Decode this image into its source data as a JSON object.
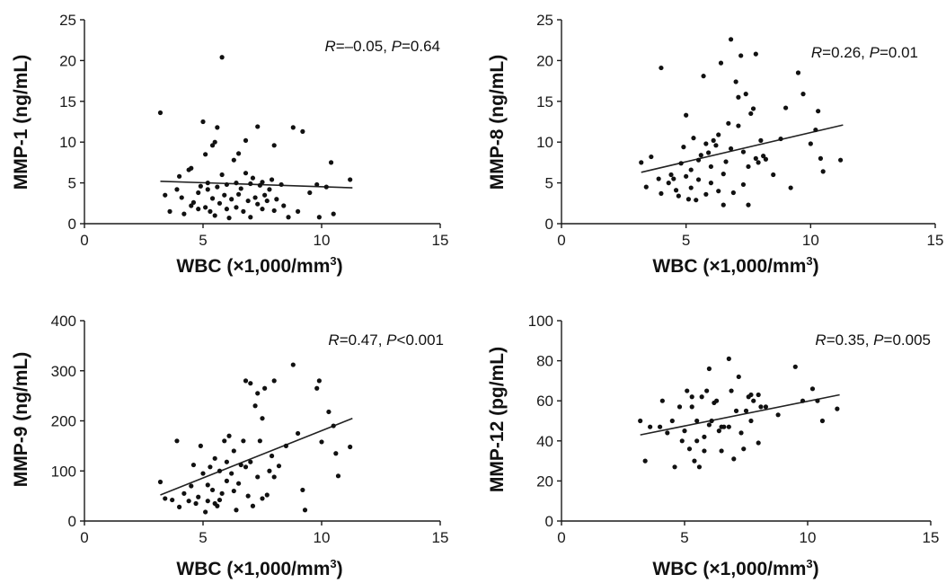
{
  "chart_data": [
    {
      "type": "scatter",
      "xlabel": "WBC (×1,000/mm³)",
      "ylabel": "MMP-1 (ng/mL)",
      "xlim": [
        0,
        15
      ],
      "ylim": [
        0,
        25
      ],
      "xticks": [
        "0",
        "5",
        "10",
        "15"
      ],
      "yticks": [
        "0",
        "5",
        "10",
        "15",
        "20",
        "25"
      ],
      "annotation": {
        "r_label": "R",
        "r_value": "=–0.05, ",
        "p_label": "P",
        "p_value": "=0.64"
      },
      "trendline": {
        "x": [
          3.2,
          11.3
        ],
        "y": [
          5.2,
          4.4
        ]
      },
      "points": [
        [
          3.2,
          13.6
        ],
        [
          3.4,
          3.5
        ],
        [
          3.6,
          1.5
        ],
        [
          3.9,
          4.2
        ],
        [
          4.0,
          5.8
        ],
        [
          4.1,
          3.2
        ],
        [
          4.2,
          1.2
        ],
        [
          4.4,
          6.6
        ],
        [
          4.5,
          2.2
        ],
        [
          4.5,
          6.8
        ],
        [
          4.6,
          2.6
        ],
        [
          4.8,
          3.8
        ],
        [
          4.8,
          1.8
        ],
        [
          4.9,
          4.6
        ],
        [
          5.0,
          12.5
        ],
        [
          5.1,
          8.5
        ],
        [
          5.1,
          2.0
        ],
        [
          5.2,
          5.0
        ],
        [
          5.2,
          4.2
        ],
        [
          5.3,
          1.5
        ],
        [
          5.4,
          9.6
        ],
        [
          5.4,
          3.1
        ],
        [
          5.5,
          10.0
        ],
        [
          5.5,
          1.0
        ],
        [
          5.6,
          11.8
        ],
        [
          5.6,
          4.5
        ],
        [
          5.7,
          2.5
        ],
        [
          5.8,
          20.4
        ],
        [
          5.8,
          6.0
        ],
        [
          5.9,
          3.5
        ],
        [
          6.0,
          1.8
        ],
        [
          6.0,
          4.8
        ],
        [
          6.1,
          0.7
        ],
        [
          6.2,
          3.0
        ],
        [
          6.3,
          7.8
        ],
        [
          6.4,
          5.0
        ],
        [
          6.4,
          2.0
        ],
        [
          6.5,
          8.6
        ],
        [
          6.5,
          3.6
        ],
        [
          6.6,
          4.3
        ],
        [
          6.7,
          1.5
        ],
        [
          6.8,
          10.2
        ],
        [
          6.8,
          6.2
        ],
        [
          6.9,
          2.8
        ],
        [
          7.0,
          4.9
        ],
        [
          7.0,
          0.8
        ],
        [
          7.1,
          5.6
        ],
        [
          7.2,
          3.2
        ],
        [
          7.3,
          11.9
        ],
        [
          7.3,
          2.4
        ],
        [
          7.4,
          4.7
        ],
        [
          7.5,
          1.8
        ],
        [
          7.5,
          5.1
        ],
        [
          7.6,
          3.5
        ],
        [
          7.7,
          2.8
        ],
        [
          7.8,
          4.2
        ],
        [
          7.9,
          5.4
        ],
        [
          8.0,
          1.6
        ],
        [
          8.0,
          9.6
        ],
        [
          8.1,
          3.0
        ],
        [
          8.3,
          4.8
        ],
        [
          8.4,
          2.2
        ],
        [
          8.6,
          0.8
        ],
        [
          8.8,
          11.8
        ],
        [
          9.0,
          1.5
        ],
        [
          9.2,
          11.3
        ],
        [
          9.5,
          3.8
        ],
        [
          9.8,
          4.8
        ],
        [
          9.9,
          0.8
        ],
        [
          10.2,
          4.5
        ],
        [
          10.4,
          7.5
        ],
        [
          10.5,
          1.2
        ],
        [
          11.2,
          5.4
        ]
      ]
    },
    {
      "type": "scatter",
      "xlabel": "WBC (×1,000/mm³)",
      "ylabel": "MMP-8 (ng/mL)",
      "xlim": [
        0,
        15
      ],
      "ylim": [
        0,
        25
      ],
      "xticks": [
        "0",
        "5",
        "10",
        "15"
      ],
      "yticks": [
        "0",
        "5",
        "10",
        "15",
        "20",
        "25"
      ],
      "annotation": {
        "r_label": "R",
        "r_value": "=0.26, ",
        "p_label": "P",
        "p_value": "=0.01"
      },
      "trendline": {
        "x": [
          3.2,
          11.3
        ],
        "y": [
          6.3,
          12.1
        ]
      },
      "points": [
        [
          3.2,
          7.5
        ],
        [
          3.4,
          4.5
        ],
        [
          3.6,
          8.2
        ],
        [
          3.9,
          5.5
        ],
        [
          4.0,
          19.1
        ],
        [
          4.0,
          3.7
        ],
        [
          4.3,
          5.0
        ],
        [
          4.4,
          6.0
        ],
        [
          4.5,
          5.5
        ],
        [
          4.6,
          4.1
        ],
        [
          4.7,
          3.4
        ],
        [
          4.8,
          7.4
        ],
        [
          4.9,
          9.4
        ],
        [
          5.0,
          13.3
        ],
        [
          5.0,
          5.8
        ],
        [
          5.1,
          3.0
        ],
        [
          5.2,
          6.6
        ],
        [
          5.2,
          4.4
        ],
        [
          5.3,
          10.5
        ],
        [
          5.4,
          2.9
        ],
        [
          5.5,
          5.4
        ],
        [
          5.5,
          7.8
        ],
        [
          5.6,
          8.4
        ],
        [
          5.7,
          18.1
        ],
        [
          5.8,
          9.8
        ],
        [
          5.8,
          3.6
        ],
        [
          5.9,
          8.7
        ],
        [
          6.0,
          5.0
        ],
        [
          6.0,
          7.0
        ],
        [
          6.1,
          10.2
        ],
        [
          6.2,
          9.6
        ],
        [
          6.3,
          4.0
        ],
        [
          6.3,
          10.9
        ],
        [
          6.4,
          19.7
        ],
        [
          6.5,
          6.1
        ],
        [
          6.5,
          2.3
        ],
        [
          6.6,
          7.6
        ],
        [
          6.7,
          12.3
        ],
        [
          6.8,
          22.6
        ],
        [
          6.8,
          9.2
        ],
        [
          6.9,
          3.8
        ],
        [
          7.0,
          17.4
        ],
        [
          7.1,
          12.0
        ],
        [
          7.1,
          15.5
        ],
        [
          7.2,
          20.6
        ],
        [
          7.3,
          8.8
        ],
        [
          7.3,
          4.8
        ],
        [
          7.4,
          15.9
        ],
        [
          7.5,
          7.0
        ],
        [
          7.5,
          2.3
        ],
        [
          7.6,
          13.5
        ],
        [
          7.7,
          14.1
        ],
        [
          7.8,
          8.0
        ],
        [
          7.8,
          20.8
        ],
        [
          7.9,
          7.5
        ],
        [
          8.0,
          10.2
        ],
        [
          8.1,
          8.3
        ],
        [
          8.2,
          7.9
        ],
        [
          8.5,
          6.0
        ],
        [
          8.8,
          10.4
        ],
        [
          9.0,
          14.2
        ],
        [
          9.2,
          4.4
        ],
        [
          9.5,
          18.5
        ],
        [
          9.7,
          15.9
        ],
        [
          10.0,
          9.8
        ],
        [
          10.2,
          11.5
        ],
        [
          10.3,
          13.8
        ],
        [
          10.4,
          8.0
        ],
        [
          10.5,
          6.4
        ],
        [
          11.2,
          7.8
        ]
      ]
    },
    {
      "type": "scatter",
      "xlabel": "WBC (×1,000/mm³)",
      "ylabel": "MMP-9 (ng/mL)",
      "xlim": [
        0,
        15
      ],
      "ylim": [
        0,
        400
      ],
      "xticks": [
        "0",
        "5",
        "10",
        "15"
      ],
      "yticks": [
        "0",
        "100",
        "200",
        "300",
        "400"
      ],
      "annotation": {
        "r_label": "R",
        "r_value": "=0.47, ",
        "p_label": "P",
        "p_value": "<0.001"
      },
      "trendline": {
        "x": [
          3.2,
          11.3
        ],
        "y": [
          52,
          205
        ]
      },
      "points": [
        [
          3.2,
          78
        ],
        [
          3.4,
          45
        ],
        [
          3.7,
          42
        ],
        [
          3.9,
          160
        ],
        [
          4.0,
          28
        ],
        [
          4.2,
          55
        ],
        [
          4.4,
          40
        ],
        [
          4.5,
          70
        ],
        [
          4.6,
          112
        ],
        [
          4.7,
          35
        ],
        [
          4.8,
          48
        ],
        [
          4.9,
          150
        ],
        [
          5.0,
          95
        ],
        [
          5.1,
          18
        ],
        [
          5.2,
          72
        ],
        [
          5.2,
          40
        ],
        [
          5.3,
          108
        ],
        [
          5.4,
          62
        ],
        [
          5.5,
          125
        ],
        [
          5.5,
          35
        ],
        [
          5.6,
          30
        ],
        [
          5.7,
          42
        ],
        [
          5.7,
          100
        ],
        [
          5.8,
          55
        ],
        [
          5.9,
          160
        ],
        [
          6.0,
          80
        ],
        [
          6.0,
          118
        ],
        [
          6.1,
          170
        ],
        [
          6.2,
          95
        ],
        [
          6.3,
          60
        ],
        [
          6.3,
          140
        ],
        [
          6.4,
          22
        ],
        [
          6.5,
          75
        ],
        [
          6.6,
          112
        ],
        [
          6.7,
          160
        ],
        [
          6.8,
          280
        ],
        [
          6.8,
          108
        ],
        [
          6.9,
          50
        ],
        [
          7.0,
          275
        ],
        [
          7.0,
          118
        ],
        [
          7.1,
          30
        ],
        [
          7.2,
          230
        ],
        [
          7.3,
          255
        ],
        [
          7.3,
          88
        ],
        [
          7.4,
          160
        ],
        [
          7.5,
          205
        ],
        [
          7.5,
          45
        ],
        [
          7.6,
          265
        ],
        [
          7.7,
          52
        ],
        [
          7.8,
          100
        ],
        [
          7.9,
          130
        ],
        [
          8.0,
          280
        ],
        [
          8.0,
          88
        ],
        [
          8.2,
          110
        ],
        [
          8.5,
          150
        ],
        [
          8.8,
          312
        ],
        [
          9.0,
          175
        ],
        [
          9.2,
          62
        ],
        [
          9.3,
          22
        ],
        [
          9.8,
          265
        ],
        [
          9.9,
          280
        ],
        [
          10.0,
          158
        ],
        [
          10.3,
          218
        ],
        [
          10.5,
          190
        ],
        [
          10.6,
          135
        ],
        [
          10.7,
          90
        ],
        [
          11.2,
          148
        ]
      ]
    },
    {
      "type": "scatter",
      "xlabel": "WBC (×1,000/mm³)",
      "ylabel": "MMP-12 (pg/mL)",
      "xlim": [
        0,
        15
      ],
      "ylim": [
        0,
        100
      ],
      "xticks": [
        "0",
        "5",
        "10",
        "15"
      ],
      "yticks": [
        "0",
        "20",
        "40",
        "60",
        "80",
        "100"
      ],
      "annotation": {
        "r_label": "R",
        "r_value": "=0.35, ",
        "p_label": "P",
        "p_value": "=0.005"
      },
      "trendline": {
        "x": [
          3.2,
          11.3
        ],
        "y": [
          43,
          63
        ]
      },
      "points": [
        [
          3.2,
          50
        ],
        [
          3.4,
          30
        ],
        [
          3.6,
          47
        ],
        [
          4.0,
          47
        ],
        [
          4.1,
          60
        ],
        [
          4.3,
          44
        ],
        [
          4.5,
          50
        ],
        [
          4.6,
          27
        ],
        [
          4.8,
          57
        ],
        [
          4.9,
          40
        ],
        [
          5.0,
          45
        ],
        [
          5.1,
          65
        ],
        [
          5.2,
          36
        ],
        [
          5.3,
          57
        ],
        [
          5.3,
          62
        ],
        [
          5.4,
          30
        ],
        [
          5.5,
          50
        ],
        [
          5.5,
          40
        ],
        [
          5.6,
          27
        ],
        [
          5.7,
          62
        ],
        [
          5.8,
          42
        ],
        [
          5.8,
          35
        ],
        [
          5.9,
          65
        ],
        [
          6.0,
          76
        ],
        [
          6.0,
          48
        ],
        [
          6.1,
          50
        ],
        [
          6.2,
          59
        ],
        [
          6.3,
          60
        ],
        [
          6.4,
          45
        ],
        [
          6.5,
          47
        ],
        [
          6.5,
          35
        ],
        [
          6.6,
          47
        ],
        [
          6.8,
          81
        ],
        [
          6.8,
          47
        ],
        [
          6.9,
          65
        ],
        [
          7.0,
          31
        ],
        [
          7.1,
          55
        ],
        [
          7.2,
          72
        ],
        [
          7.3,
          44
        ],
        [
          7.4,
          36
        ],
        [
          7.5,
          55
        ],
        [
          7.6,
          62
        ],
        [
          7.7,
          50
        ],
        [
          7.7,
          63
        ],
        [
          7.8,
          60
        ],
        [
          8.0,
          63
        ],
        [
          8.0,
          39
        ],
        [
          8.1,
          57
        ],
        [
          8.3,
          57
        ],
        [
          8.8,
          53
        ],
        [
          9.5,
          77
        ],
        [
          9.8,
          60
        ],
        [
          10.2,
          66
        ],
        [
          10.4,
          60
        ],
        [
          10.6,
          50
        ],
        [
          11.2,
          56
        ]
      ]
    }
  ]
}
